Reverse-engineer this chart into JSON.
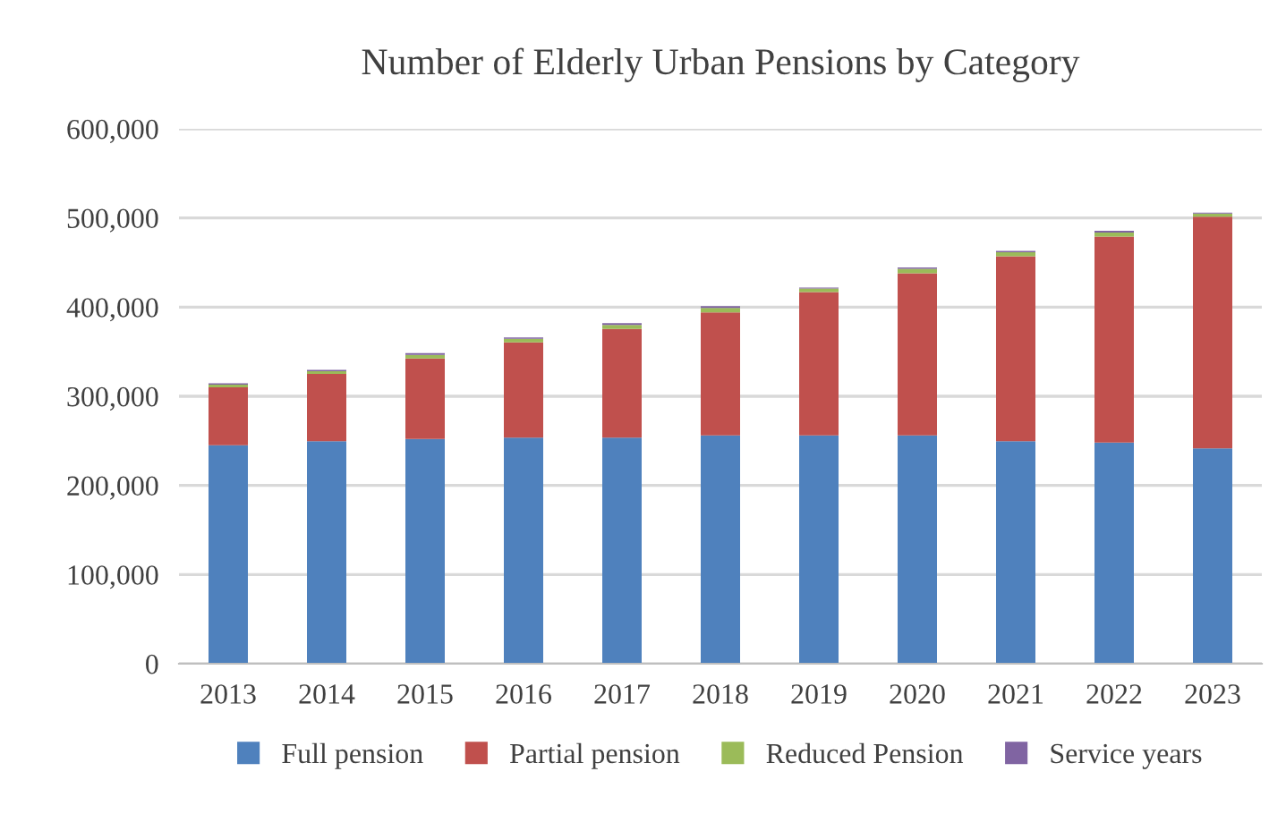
{
  "chart_data": {
    "type": "bar",
    "stacked": true,
    "title": "Number of Elderly Urban Pensions by Category",
    "categories": [
      "2013",
      "2014",
      "2015",
      "2016",
      "2017",
      "2018",
      "2019",
      "2020",
      "2021",
      "2022",
      "2023"
    ],
    "series": [
      {
        "name": "Full pension",
        "color": "#4f81bd",
        "values": [
          245000,
          249500,
          252000,
          253500,
          253500,
          256000,
          256000,
          256000,
          249500,
          248000,
          241500
        ]
      },
      {
        "name": "Partial pension",
        "color": "#c0504d",
        "values": [
          65000,
          75500,
          90500,
          107000,
          122000,
          138000,
          161000,
          182000,
          207500,
          231000,
          260000
        ]
      },
      {
        "name": "Reduced Pension",
        "color": "#9bbb59",
        "values": [
          3000,
          3000,
          4000,
          4000,
          4500,
          5000,
          4000,
          5000,
          4500,
          4500,
          3500
        ]
      },
      {
        "name": "Service years",
        "color": "#8064a2",
        "values": [
          1500,
          1500,
          2000,
          1500,
          2000,
          2000,
          1000,
          1500,
          1500,
          2000,
          1000
        ]
      }
    ],
    "ylim": [
      0,
      600000
    ],
    "yticks": [
      {
        "value": 0,
        "label": "0"
      },
      {
        "value": 100000,
        "label": "100,000"
      },
      {
        "value": 200000,
        "label": "200,000"
      },
      {
        "value": 300000,
        "label": "300,000"
      },
      {
        "value": 400000,
        "label": "400,000"
      },
      {
        "value": 500000,
        "label": "500,000"
      },
      {
        "value": 600000,
        "label": "600,000"
      }
    ],
    "grid": "y",
    "legend": "bottom"
  }
}
